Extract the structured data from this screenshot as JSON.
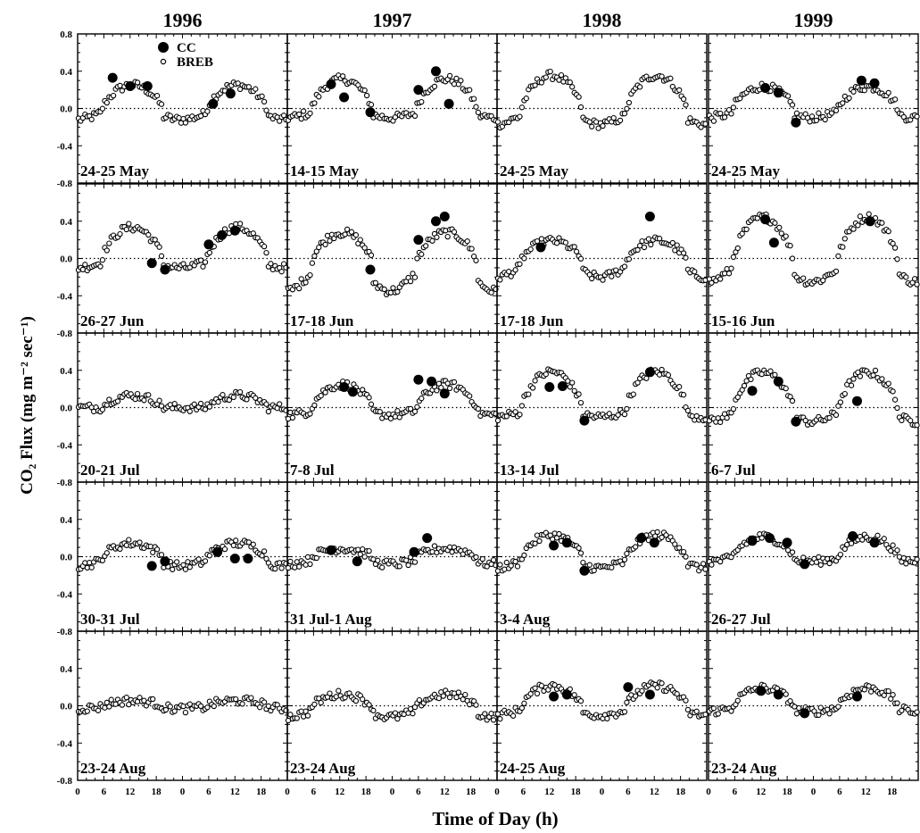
{
  "chart_data": {
    "type": "scatter",
    "xlabel": "Time of Day (h)",
    "ylabel": "CO₂ Flux (mg m⁻² sec⁻¹)",
    "years": [
      "1996",
      "1997",
      "1998",
      "1999"
    ],
    "ylim": [
      -0.8,
      0.8
    ],
    "yticks": [
      "0.8",
      "0.4",
      "0.0",
      "-0.4",
      "-0.8"
    ],
    "xticks": [
      "0",
      "6",
      "12",
      "18",
      "0",
      "6",
      "12",
      "18"
    ],
    "xlim_hours": [
      0,
      48
    ],
    "zero_line": "dotted",
    "legend": {
      "placement": "top-left of first panel",
      "entries": [
        {
          "name": "CC",
          "marker": "filled-circle"
        },
        {
          "name": "BREB",
          "marker": "open-circle"
        }
      ]
    },
    "panel_labels": [
      [
        "24-25 May",
        "14-15 May",
        "24-25 May",
        "24-25 May"
      ],
      [
        "26-27 Jun",
        "17-18 Jun",
        "17-18 Jun",
        "15-16 Jun"
      ],
      [
        "20-21 Jul",
        "7-8 Jul",
        "13-14 Jul",
        "6-7 Jul"
      ],
      [
        "30-31 Jul",
        "31 Jul-1 Aug",
        "3-4 Aug",
        "26-27 Jul"
      ],
      [
        "23-24 Aug",
        "23-24 Aug",
        "24-25 Aug",
        "23-24 Aug"
      ]
    ],
    "series_note": "Each panel shows two-day diurnal course; BREB = open circles every 20 min, CC = filled circles",
    "panels": [
      [
        {
          "day_peak": 0.27,
          "night": -0.12,
          "cc": [
            [
              8,
              0.33
            ],
            [
              12,
              0.24
            ],
            [
              16,
              0.24
            ],
            [
              31,
              0.05
            ],
            [
              35,
              0.16
            ]
          ]
        },
        {
          "day_peak": 0.33,
          "night": -0.1,
          "cc": [
            [
              10,
              0.26
            ],
            [
              13,
              0.12
            ],
            [
              19,
              -0.04
            ],
            [
              30,
              0.2
            ],
            [
              34,
              0.4
            ],
            [
              37,
              0.05
            ]
          ]
        },
        {
          "day_peak": 0.38,
          "night": -0.17,
          "cc": []
        },
        {
          "day_peak": 0.25,
          "night": -0.1,
          "cc": [
            [
              13,
              0.22
            ],
            [
              16,
              0.17
            ],
            [
              20,
              -0.15
            ],
            [
              35,
              0.3
            ],
            [
              38,
              0.27
            ]
          ]
        }
      ],
      [
        {
          "day_peak": 0.35,
          "night": -0.1,
          "cc": [
            [
              17,
              -0.05
            ],
            [
              20,
              -0.12
            ],
            [
              30,
              0.15
            ],
            [
              33,
              0.25
            ],
            [
              36,
              0.3
            ]
          ]
        },
        {
          "day_peak": 0.33,
          "night": -0.35,
          "cc": [
            [
              19,
              -0.12
            ],
            [
              30,
              0.2
            ],
            [
              34,
              0.4
            ],
            [
              36,
              0.45
            ]
          ]
        },
        {
          "day_peak": 0.22,
          "night": -0.2,
          "cc": [
            [
              10,
              0.12
            ],
            [
              35,
              0.45
            ]
          ]
        },
        {
          "day_peak": 0.48,
          "night": -0.25,
          "cc": [
            [
              13,
              0.42
            ],
            [
              15,
              0.17
            ],
            [
              37,
              0.4
            ]
          ]
        }
      ],
      [
        {
          "day_peak": 0.13,
          "night": 0.0,
          "cc": []
        },
        {
          "day_peak": 0.26,
          "night": -0.08,
          "cc": [
            [
              13,
              0.22
            ],
            [
              15,
              0.17
            ],
            [
              30,
              0.3
            ],
            [
              33,
              0.28
            ],
            [
              36,
              0.15
            ]
          ]
        },
        {
          "day_peak": 0.4,
          "night": -0.1,
          "cc": [
            [
              12,
              0.22
            ],
            [
              15,
              0.23
            ],
            [
              20,
              -0.14
            ],
            [
              35,
              0.38
            ]
          ]
        },
        {
          "day_peak": 0.4,
          "night": -0.15,
          "cc": [
            [
              10,
              0.18
            ],
            [
              16,
              0.28
            ],
            [
              20,
              -0.15
            ],
            [
              34,
              0.07
            ]
          ]
        }
      ],
      [
        {
          "day_peak": 0.16,
          "night": -0.1,
          "cc": [
            [
              17,
              -0.1
            ],
            [
              20,
              -0.05
            ],
            [
              32,
              0.05
            ],
            [
              36,
              -0.02
            ],
            [
              39,
              -0.02
            ]
          ]
        },
        {
          "day_peak": 0.1,
          "night": -0.08,
          "cc": [
            [
              10,
              0.07
            ],
            [
              16,
              -0.05
            ],
            [
              29,
              0.05
            ],
            [
              32,
              0.2
            ]
          ]
        },
        {
          "day_peak": 0.25,
          "night": -0.12,
          "cc": [
            [
              13,
              0.12
            ],
            [
              16,
              0.15
            ],
            [
              20,
              -0.15
            ],
            [
              33,
              0.2
            ],
            [
              36,
              0.15
            ]
          ]
        },
        {
          "day_peak": 0.22,
          "night": -0.05,
          "cc": [
            [
              10,
              0.17
            ],
            [
              14,
              0.2
            ],
            [
              18,
              0.15
            ],
            [
              22,
              -0.08
            ],
            [
              33,
              0.22
            ],
            [
              38,
              0.15
            ]
          ]
        }
      ],
      [
        {
          "day_peak": 0.06,
          "night": -0.03,
          "cc": []
        },
        {
          "day_peak": 0.14,
          "night": -0.12,
          "cc": []
        },
        {
          "day_peak": 0.23,
          "night": -0.1,
          "cc": [
            [
              13,
              0.1
            ],
            [
              16,
              0.12
            ],
            [
              30,
              0.2
            ],
            [
              35,
              0.12
            ]
          ]
        },
        {
          "day_peak": 0.2,
          "night": -0.06,
          "cc": [
            [
              12,
              0.16
            ],
            [
              16,
              0.12
            ],
            [
              22,
              -0.08
            ],
            [
              34,
              0.1
            ]
          ]
        }
      ]
    ]
  }
}
